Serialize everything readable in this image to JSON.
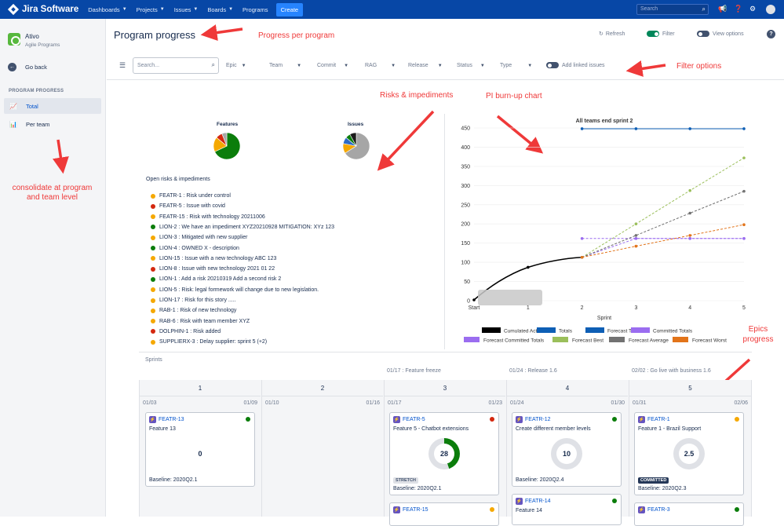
{
  "topbar": {
    "product": "Jira Software",
    "nav": [
      "Dashboards",
      "Projects",
      "Issues",
      "Boards",
      "Programs"
    ],
    "create_label": "Create",
    "search_placeholder": "Search"
  },
  "sidebar": {
    "project_name": "Ativo",
    "project_type": "Agile Programs",
    "back_label": "Go back",
    "section_label": "PROGRAM PROGRESS",
    "items": [
      {
        "label": "Total",
        "icon": "line-chart-icon",
        "active": true
      },
      {
        "label": "Per team",
        "icon": "bar-chart-icon",
        "active": false
      }
    ]
  },
  "header": {
    "title": "Program progress",
    "refresh_label": "Refresh",
    "filter_label": "Filter",
    "view_options_label": "View options"
  },
  "filters": {
    "search_placeholder": "Search...",
    "dropdowns": [
      "Epic",
      "Team",
      "Commit",
      "RAG",
      "Release",
      "Status",
      "Type"
    ],
    "linked_label": "Add linked issues"
  },
  "annotations": {
    "progress_per_program": "Progress per program",
    "filter_options": "Filter options",
    "risks": "Risks & impediments",
    "burnup": "PI burn-up chart",
    "consolidate": "consolidate at program and team level",
    "epics": "Epics progress"
  },
  "pies": {
    "features_label": "Features",
    "issues_label": "Issues",
    "features": [
      {
        "value": 68,
        "color": "#0b7d0b"
      },
      {
        "value": 18,
        "color": "#f5a800"
      },
      {
        "value": 8,
        "color": "#d4280f"
      },
      {
        "value": 6,
        "color": "#a6a6a6"
      }
    ],
    "issues": [
      {
        "value": 66,
        "color": "#a6a6a6"
      },
      {
        "value": 12,
        "color": "#f5a800"
      },
      {
        "value": 8,
        "color": "#2f6cc5"
      },
      {
        "value": 6,
        "color": "#0b7d0b"
      },
      {
        "value": 8,
        "color": "#1b1b1b"
      }
    ]
  },
  "risks": {
    "title": "Open risks & impediments",
    "items": [
      {
        "text": "FEATR-1 : Risk under control",
        "color": "#f5a800"
      },
      {
        "text": "FEATR-5 : Issue with covid",
        "color": "#d4280f"
      },
      {
        "text": "FEATR-15 : Risk with technology 20211006",
        "color": "#f5a800"
      },
      {
        "text": "LION-2 : We have an impediment XYZ20210928 MITIGATION: XYz 123",
        "color": "#0b7d0b"
      },
      {
        "text": "LION-3 : Mitigated with new supplier",
        "color": "#f5a800"
      },
      {
        "text": "LION-4 : OWNED X - description",
        "color": "#0b7d0b"
      },
      {
        "text": "LION-15 : Issue with a new technology ABC 123",
        "color": "#f5a800"
      },
      {
        "text": "LION-8 : Issue with new technology 2021 01 22",
        "color": "#d4280f"
      },
      {
        "text": "LION-1 : Add a risk 20210319 Add a second risk 2",
        "color": "#0b7d0b"
      },
      {
        "text": "LION-5 : Risk: legal formework will change due to new legislation.",
        "color": "#f5a800"
      },
      {
        "text": "LION-17 : Risk for this story .....",
        "color": "#f5a800"
      },
      {
        "text": "RAB-1 : Risk of new technology",
        "color": "#f5a800"
      },
      {
        "text": "RAB-6 : Risk with team member XYZ",
        "color": "#f5a800"
      },
      {
        "text": "DOLPHIN-1 : Risk added",
        "color": "#d4280f"
      },
      {
        "text": "SUPPLIERX-3 : Delay supplier: sprint 5 (+2)",
        "color": "#f5a800"
      }
    ]
  },
  "chart_data": {
    "type": "line",
    "title": "All teams end sprint 2",
    "xlabel": "Sprint",
    "ylabel": "",
    "categories": [
      "Start",
      "1",
      "2",
      "3",
      "4",
      "5"
    ],
    "ylim": [
      0,
      450
    ],
    "yticks": [
      0,
      50,
      100,
      150,
      200,
      250,
      300,
      350,
      400,
      450
    ],
    "series": [
      {
        "name": "Cumulated Actuals",
        "color": "#000000",
        "style": "solid",
        "values": [
          2,
          87,
          113,
          null,
          null,
          null
        ]
      },
      {
        "name": "Totals",
        "color": "#0e5fb5",
        "style": "solid",
        "values": [
          null,
          null,
          448,
          448,
          448,
          448
        ]
      },
      {
        "name": "Forecast Totals",
        "color": "#0e5fb5",
        "style": "dashed",
        "values": [
          null,
          null,
          null,
          null,
          null,
          null
        ]
      },
      {
        "name": "Committed Totals",
        "color": "#9b6df0",
        "style": "dashed",
        "values": [
          null,
          null,
          162,
          162,
          162,
          162
        ]
      },
      {
        "name": "Forecast Committed Totals",
        "color": "#9b6df0",
        "style": "dashed",
        "values": [
          null,
          null,
          113,
          162,
          162,
          162
        ]
      },
      {
        "name": "Forecast Best",
        "color": "#9bbf5b",
        "style": "dashed",
        "values": [
          null,
          null,
          113,
          200,
          287,
          372
        ]
      },
      {
        "name": "Forecast Average",
        "color": "#727272",
        "style": "dashed",
        "values": [
          null,
          null,
          113,
          170,
          228,
          285
        ]
      },
      {
        "name": "Forecast Worst",
        "color": "#e2741a",
        "style": "dashed",
        "values": [
          null,
          null,
          113,
          142,
          170,
          198
        ]
      }
    ],
    "legend_position": "bottom"
  },
  "sprints": {
    "label": "Sprints",
    "milestones": [
      {
        "date": "01/17 : Feature freeze"
      },
      {
        "date": "01/24 : Release 1.6"
      },
      {
        "date": "02/02 : Go live with business 1.6"
      }
    ],
    "columns": [
      {
        "num": "1",
        "start": "01/03",
        "end": "01/09"
      },
      {
        "num": "2",
        "start": "01/10",
        "end": "01/16"
      },
      {
        "num": "3",
        "start": "01/17",
        "end": "01/23"
      },
      {
        "num": "4",
        "start": "01/24",
        "end": "01/30"
      },
      {
        "num": "5",
        "start": "01/31",
        "end": "02/06"
      }
    ],
    "cards": [
      {
        "key": "FEATR-13",
        "summary": "Feature 13",
        "value": "0",
        "progress": 0,
        "baseline": "Baseline: 2020Q2.1",
        "color": "#0b7d0b",
        "badge": ""
      },
      {
        "key": "FEATR-5",
        "summary": "Feature 5 - Chatbot extensions",
        "value": "28",
        "progress": 0.45,
        "baseline": "Baseline: 2020Q2.1",
        "color": "#d4280f",
        "badge": "STRETCH"
      },
      {
        "key": "FEATR-12",
        "summary": "Create different member levels",
        "value": "10",
        "progress": 0,
        "baseline": "Baseline: 2020Q2.4",
        "color": "#0b7d0b",
        "badge": ""
      },
      {
        "key": "FEATR-1",
        "summary": "Feature 1 - Brazil Support",
        "value": "2.5",
        "progress": 0,
        "baseline": "Baseline: 2020Q2.3",
        "color": "#f5a800",
        "badge": "COMMITTED"
      },
      {
        "key": "FEATR-15",
        "summary": "",
        "color": "#f5a800"
      },
      {
        "key": "FEATR-14",
        "summary": "Feature 14",
        "color": "#0b7d0b"
      },
      {
        "key": "FEATR-3",
        "summary": "",
        "color": "#0b7d0b"
      }
    ]
  }
}
